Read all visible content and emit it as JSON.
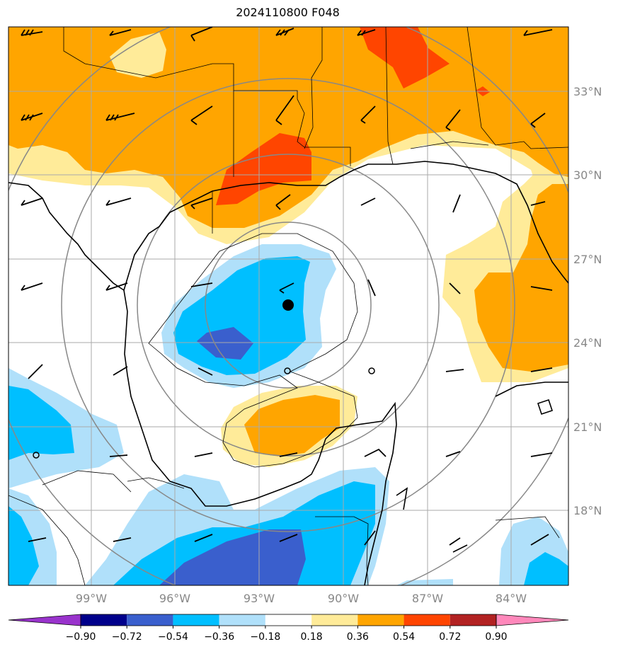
{
  "title": "2024110800 F048",
  "lat_labels": [
    "33°N",
    "30°N",
    "27°N",
    "24°N",
    "21°N",
    "18°N"
  ],
  "lon_labels": [
    "99°W",
    "96°W",
    "93°W",
    "90°W",
    "87°W",
    "84°W"
  ],
  "colorbar": {
    "ticks": [
      "−0.90",
      "−0.72",
      "−0.54",
      "−0.36",
      "−0.18",
      "0.18",
      "0.36",
      "0.54",
      "0.72",
      "0.90"
    ],
    "colors": [
      "#9933cc",
      "#00008b",
      "#3a5fcd",
      "#00bfff",
      "#b0e0fa",
      "#ffffff",
      "#ffeb99",
      "#ffa500",
      "#ff4500",
      "#b22222",
      "#ff88bb"
    ]
  },
  "colors": {
    "orange": "#ffa500",
    "light_yellow": "#ffeb99",
    "red_orange": "#ff4500",
    "light_blue": "#b0e0fa",
    "deep_sky_blue": "#00bfff",
    "royal_blue": "#3a5fcd",
    "range_rings": "#888888",
    "grid": "#aaaaaa"
  },
  "storm_center": {
    "lat": 25.3,
    "lon": -91.9
  }
}
